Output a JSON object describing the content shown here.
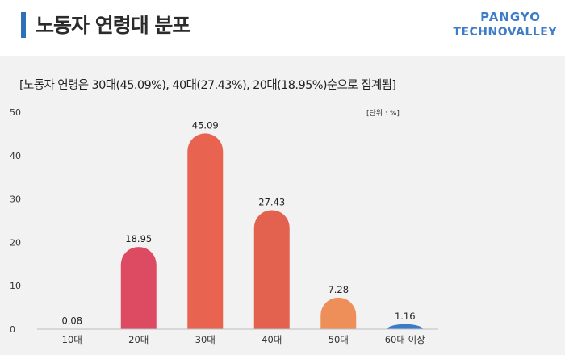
{
  "header": {
    "title": "노동자 연령대 분포",
    "logo_line1": "PANGYO",
    "logo_line2": "TECHNOVALLEY"
  },
  "colors": {
    "accent": "#2f6fb5",
    "logo": "#3d7cc9",
    "panel_bg": "#f2f2f2"
  },
  "chart_data": {
    "type": "bar",
    "title": "[노동자 연령은 30대(45.09%), 40대(27.43%), 20대(18.95%)순으로 집계됨]",
    "unit_label": "[단위 : %]",
    "categories": [
      "10대",
      "20대",
      "30대",
      "40대",
      "50대",
      "60대 이상"
    ],
    "values": [
      0.08,
      18.95,
      45.09,
      27.43,
      7.28,
      1.16
    ],
    "value_labels": [
      "0.08",
      "18.95",
      "45.09",
      "27.43",
      "7.28",
      "1.16"
    ],
    "bar_colors": [
      "#d94b6a",
      "#dd4b63",
      "#e86450",
      "#e3614f",
      "#ee8f5a",
      "#3a7bc8"
    ],
    "yticks": [
      0,
      10,
      20,
      30,
      40,
      50
    ],
    "ylim": [
      0,
      50
    ],
    "grid": false,
    "legend": "none"
  }
}
